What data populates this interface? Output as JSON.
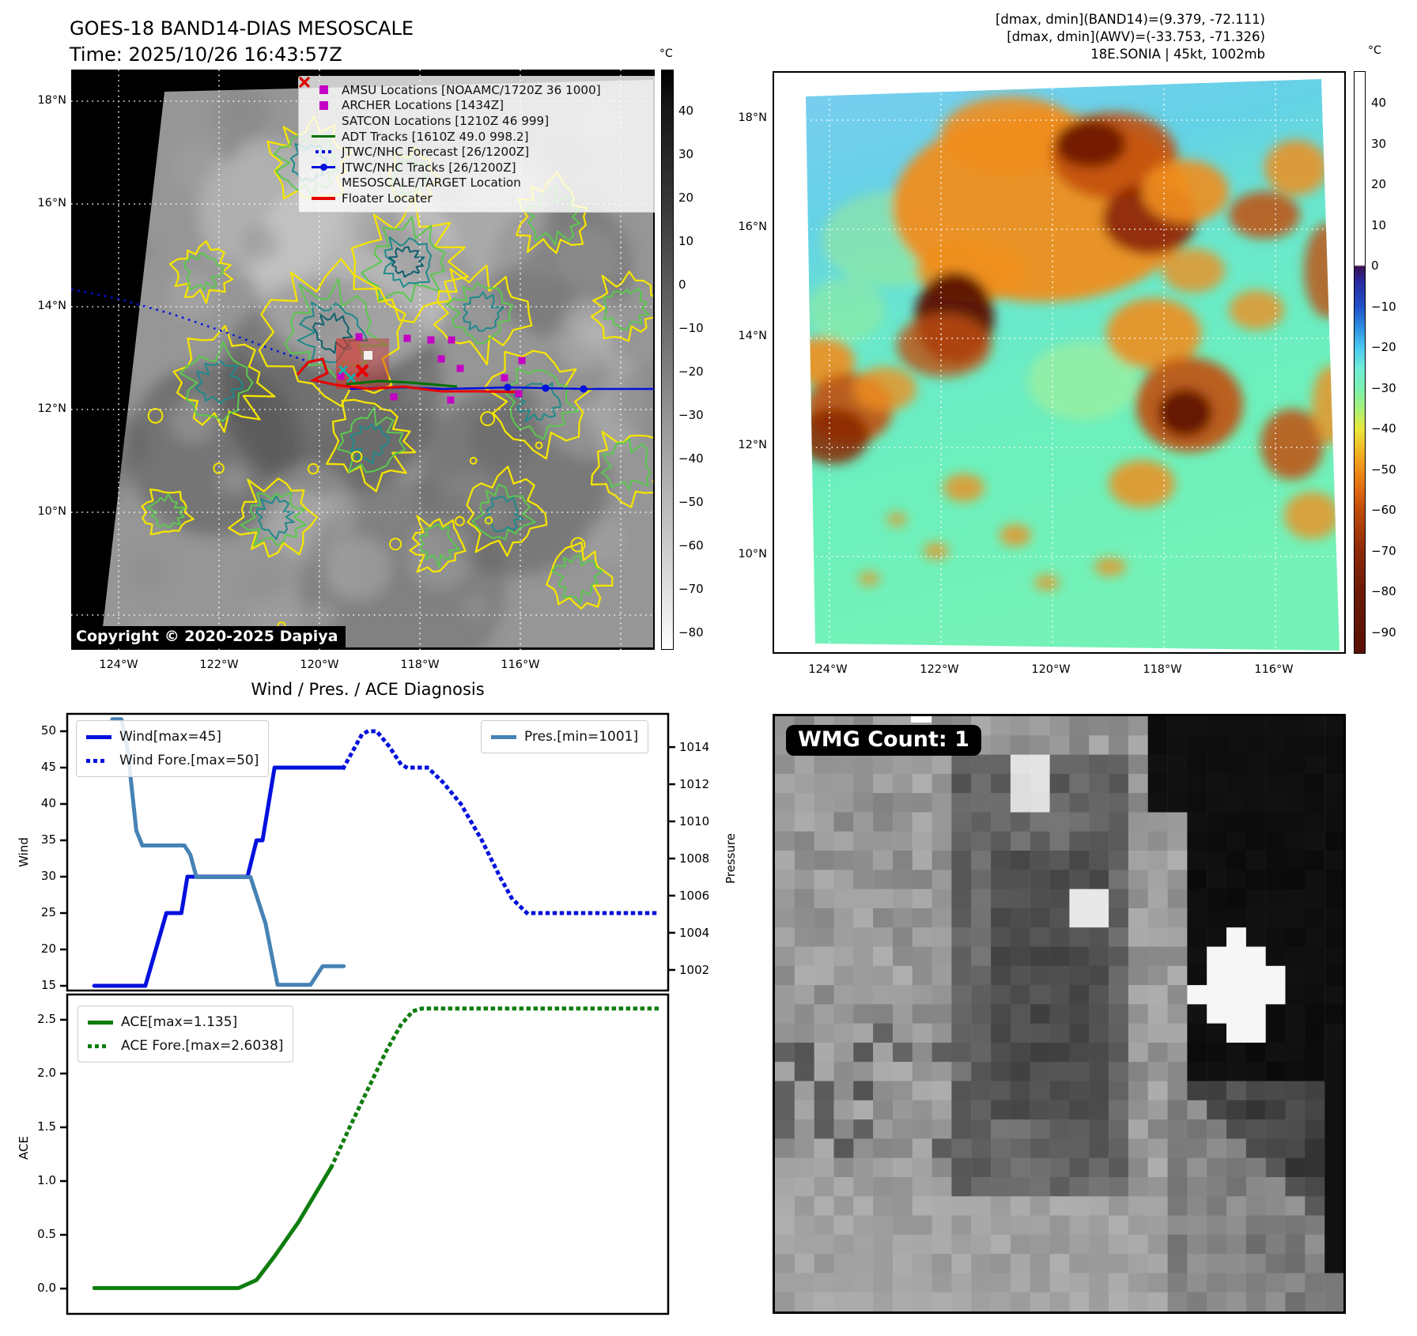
{
  "header": {
    "title_line1": "GOES-18 BAND14-DIAS MESOSCALE",
    "title_line2": "Time: 2025/10/26 16:43:57Z",
    "right_line1": "[dmax, dmin](BAND14)=(9.379, -72.111)",
    "right_line2": "[dmax, dmin](AWV)=(-33.753, -71.326)",
    "right_line3": "18E.SONIA | 45kt, 1002mb"
  },
  "band14_map": {
    "copyright": "Copyright © 2020-2025 Dapiya",
    "lat_labels": [
      "18°N",
      "16°N",
      "14°N",
      "12°N",
      "10°N"
    ],
    "lon_labels": [
      "124°W",
      "122°W",
      "120°W",
      "118°W",
      "116°W"
    ],
    "legend": [
      {
        "marker": "square",
        "color": "#c400c4",
        "label": "AMSU Locations [NOAAMC/1720Z 36 1000]"
      },
      {
        "marker": "square",
        "color": "#c400c4",
        "label": "ARCHER Locations [1434Z]"
      },
      {
        "marker": "x",
        "color": "#00b8b8",
        "label": "SATCON Locations [1210Z 46 999]"
      },
      {
        "marker": "line",
        "color": "#007000",
        "label": "ADT Tracks [1610Z 49.0 998.2]"
      },
      {
        "marker": "dotted",
        "color": "#0010dd",
        "label": "JTWC/NHC Forecast [26/1200Z]"
      },
      {
        "marker": "line-dot",
        "color": "#0010dd",
        "label": "JTWC/NHC Tracks [26/1200Z]"
      },
      {
        "marker": "x",
        "color": "#e60000",
        "label": "MESOSCALE/TARGET Location"
      },
      {
        "marker": "line",
        "color": "#e60000",
        "label": "Floater Locater"
      }
    ],
    "colorbar": {
      "unit": "°C",
      "ticks": [
        "40",
        "30",
        "20",
        "10",
        "0",
        "−10",
        "−20",
        "−30",
        "−40",
        "−50",
        "−60",
        "−70",
        "−80"
      ]
    }
  },
  "awv_map": {
    "lat_labels": [
      "18°N",
      "16°N",
      "14°N",
      "12°N",
      "10°N"
    ],
    "lon_labels": [
      "124°W",
      "122°W",
      "120°W",
      "118°W",
      "116°W"
    ],
    "colorbar": {
      "unit": "°C",
      "ticks": [
        "40",
        "30",
        "20",
        "10",
        "0",
        "−10",
        "−20",
        "−30",
        "−40",
        "−50",
        "−60",
        "−70",
        "−80",
        "−90"
      ]
    }
  },
  "wmg": {
    "label": "WMG Count: 1"
  },
  "chart_data": {
    "type": "line",
    "title": "Wind / Pres. / ACE Diagnosis",
    "x_axis": {
      "range": [
        0,
        1
      ],
      "tick_labels": []
    },
    "panels": [
      {
        "name": "wind-pressure",
        "left_axis": {
          "label": "Wind",
          "ticks": [
            "50",
            "45",
            "40",
            "35",
            "30",
            "25",
            "20",
            "15"
          ],
          "range": [
            14.35,
            52.39
          ]
        },
        "right_axis": {
          "label": "Pressure",
          "ticks": [
            "1014",
            "1012",
            "1010",
            "1008",
            "1006",
            "1004",
            "1002"
          ],
          "range": [
            1000.89,
            1015.79
          ]
        },
        "series": [
          {
            "name": "Wind[max=45]",
            "color": "#0010dd",
            "style": "solid",
            "axis": "left",
            "points": [
              [
                0.045,
                15
              ],
              [
                0.13,
                15
              ],
              [
                0.165,
                25
              ],
              [
                0.19,
                25
              ],
              [
                0.2,
                30
              ],
              [
                0.3,
                30
              ],
              [
                0.315,
                35
              ],
              [
                0.325,
                35
              ],
              [
                0.345,
                45
              ],
              [
                0.46,
                45
              ]
            ]
          },
          {
            "name": "Wind Fore.[max=50]",
            "color": "#0010dd",
            "style": "dotted",
            "axis": "left",
            "points": [
              [
                0.46,
                45
              ],
              [
                0.47,
                46.5
              ],
              [
                0.49,
                49.5
              ],
              [
                0.5,
                50
              ],
              [
                0.515,
                50
              ],
              [
                0.535,
                48
              ],
              [
                0.555,
                45.5
              ],
              [
                0.565,
                45
              ],
              [
                0.6,
                45
              ],
              [
                0.625,
                43
              ],
              [
                0.655,
                40
              ],
              [
                0.69,
                35
              ],
              [
                0.72,
                30
              ],
              [
                0.74,
                27
              ],
              [
                0.765,
                25
              ],
              [
                0.985,
                25
              ]
            ]
          },
          {
            "name": "Pres.[min=1001]",
            "color": "#4682b4",
            "style": "solid",
            "axis": "right",
            "points": [
              [
                0.075,
                1015.5
              ],
              [
                0.09,
                1015.5
              ],
              [
                0.1,
                1014
              ],
              [
                0.115,
                1009.5
              ],
              [
                0.125,
                1008.7
              ],
              [
                0.195,
                1008.7
              ],
              [
                0.205,
                1008.2
              ],
              [
                0.215,
                1007
              ],
              [
                0.305,
                1007
              ],
              [
                0.33,
                1004.5
              ],
              [
                0.35,
                1001.2
              ],
              [
                0.405,
                1001.2
              ],
              [
                0.425,
                1002.2
              ],
              [
                0.46,
                1002.2
              ]
            ]
          }
        ]
      },
      {
        "name": "ace",
        "left_axis": {
          "label": "ACE",
          "ticks": [
            "2.5",
            "2.0",
            "1.5",
            "1.0",
            "0.5",
            "0.0"
          ],
          "range": [
            -0.235,
            2.735
          ]
        },
        "series": [
          {
            "name": "ACE[max=1.135]",
            "color": "#0e7d0e",
            "style": "solid",
            "axis": "left",
            "points": [
              [
                0.045,
                0.005
              ],
              [
                0.285,
                0.005
              ],
              [
                0.315,
                0.08
              ],
              [
                0.345,
                0.3
              ],
              [
                0.385,
                0.62
              ],
              [
                0.44,
                1.135
              ]
            ]
          },
          {
            "name": "ACE Fore.[max=2.6038]",
            "color": "#0e7d0e",
            "style": "dotted",
            "axis": "left",
            "points": [
              [
                0.44,
                1.135
              ],
              [
                0.47,
                1.5
              ],
              [
                0.5,
                1.85
              ],
              [
                0.53,
                2.2
              ],
              [
                0.555,
                2.45
              ],
              [
                0.575,
                2.58
              ],
              [
                0.59,
                2.6038
              ],
              [
                0.985,
                2.6038
              ]
            ]
          }
        ]
      }
    ]
  }
}
